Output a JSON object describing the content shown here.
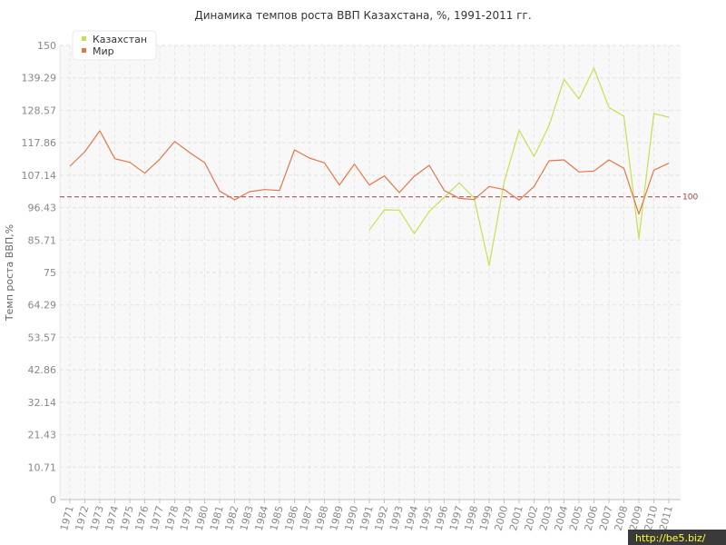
{
  "chart_data": {
    "type": "line",
    "title": "Динамика темпов роста ВВП Казахстана, %, 1991-2011 гг.",
    "ylabel": "Темп роста ВВП,%",
    "xlabel": "",
    "ylim": [
      0,
      150
    ],
    "yticks": [
      "0",
      "10.71",
      "21.43",
      "32.14",
      "42.86",
      "53.57",
      "64.29",
      "75",
      "85.71",
      "96.43",
      "107.14",
      "117.86",
      "128.57",
      "139.29",
      "150"
    ],
    "x": [
      "1971",
      "1972",
      "1973",
      "1974",
      "1975",
      "1976",
      "1977",
      "1978",
      "1979",
      "1980",
      "1981",
      "1982",
      "1983",
      "1984",
      "1985",
      "1986",
      "1987",
      "1988",
      "1989",
      "1990",
      "1991",
      "1992",
      "1993",
      "1994",
      "1995",
      "1996",
      "1997",
      "1998",
      "1999",
      "2000",
      "2001",
      "2002",
      "2003",
      "2004",
      "2005",
      "2006",
      "2007",
      "2008",
      "2009",
      "2010",
      "2011"
    ],
    "grid": true,
    "legend_position": "top-left",
    "reference_line": {
      "value": 100,
      "label": "100",
      "color": "#b0505a"
    },
    "series": [
      {
        "name": "Казахстан",
        "color": "#c8e050",
        "values": [
          null,
          null,
          null,
          null,
          null,
          null,
          null,
          null,
          null,
          null,
          null,
          null,
          null,
          null,
          null,
          null,
          null,
          null,
          null,
          null,
          89.0,
          95.7,
          95.6,
          87.8,
          95.2,
          99.8,
          104.6,
          99.6,
          77.3,
          104.8,
          122.0,
          113.3,
          123.5,
          138.8,
          132.3,
          142.5,
          129.5,
          126.6,
          86.2,
          127.5,
          126.3
        ]
      },
      {
        "name": "Мир",
        "color": "#e07848",
        "values": [
          110.1,
          114.9,
          121.8,
          112.6,
          111.4,
          107.8,
          112.4,
          118.3,
          114.6,
          111.3,
          101.9,
          99.0,
          101.7,
          102.4,
          102.1,
          115.5,
          112.8,
          111.2,
          103.9,
          110.8,
          103.9,
          106.9,
          101.4,
          106.8,
          110.4,
          102.1,
          99.5,
          99.1,
          103.4,
          102.4,
          98.9,
          103.4,
          111.9,
          112.2,
          108.2,
          108.5,
          112.2,
          109.4,
          94.3,
          108.8,
          111.1
        ]
      }
    ]
  },
  "watermark": "http://be5.biz/"
}
